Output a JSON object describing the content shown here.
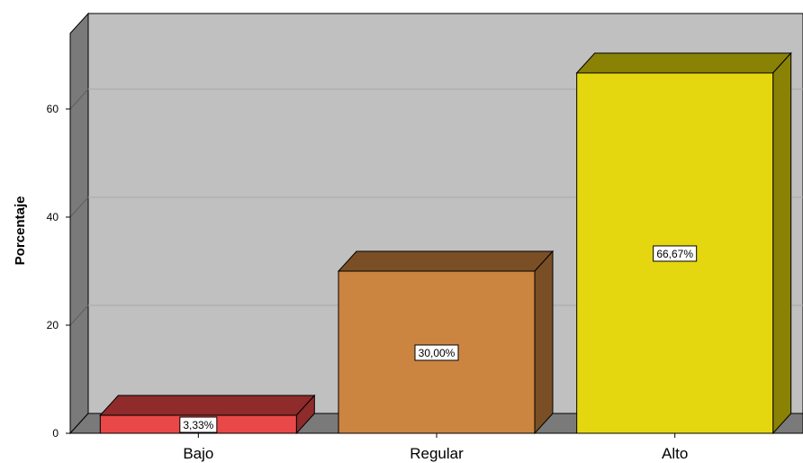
{
  "chart_data": {
    "type": "bar",
    "ylabel": "Porcentaje",
    "ylim": [
      0,
      75
    ],
    "yticks": [
      0,
      20,
      40,
      60
    ],
    "grid": true,
    "three_d": true,
    "categories": [
      "Bajo",
      "Regular",
      "Alto"
    ],
    "values": [
      3.33,
      30.0,
      66.67
    ],
    "data_labels": [
      "3,33%",
      "30,00%",
      "66,67%"
    ],
    "colors": [
      "#e84848",
      "#cc8540",
      "#e4d710"
    ],
    "side_colors": [
      "#8f2b2b",
      "#7a4f26",
      "#8a8205"
    ],
    "background": {
      "back_wall": "#c0c0c0",
      "side_wall": "#7a7a7a",
      "floor": "#7a7a7a",
      "gridline": "#a8a8a8"
    }
  }
}
